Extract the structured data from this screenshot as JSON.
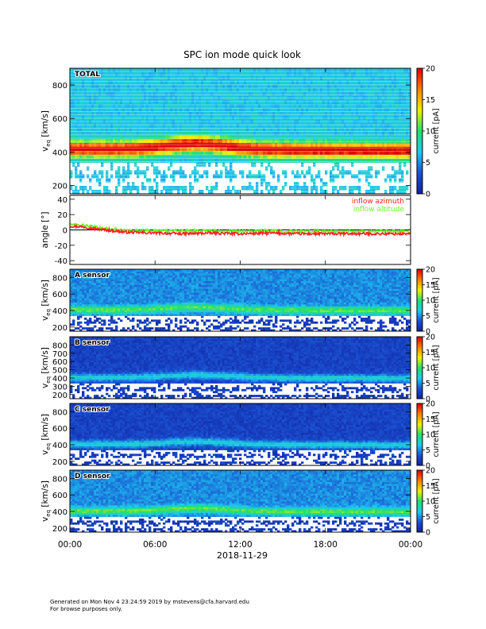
{
  "title": "SPC ion mode quick look",
  "xaxis": {
    "ticks": [
      {
        "label": "00:00",
        "hours": 0
      },
      {
        "label": "06:00",
        "hours": 6
      },
      {
        "label": "12:00",
        "hours": 12
      },
      {
        "label": "18:00",
        "hours": 18
      },
      {
        "label": "00:00",
        "hours": 24
      }
    ],
    "date_label": "2018-11-29"
  },
  "footer": {
    "line1": "Generated on Mon Nov  4 23:24:59 2019 by mstevens@cfa.harvard.edu",
    "line2": "For browse purposes only."
  },
  "colors": {
    "inflow_azimuth": "#ff2020",
    "inflow_altitude": "#66ff22",
    "colorscale": [
      "#1020a0",
      "#1a50d0",
      "#1ec8f0",
      "#20e070",
      "#f0f000",
      "#ff8000",
      "#e00000"
    ]
  },
  "chart_data": [
    {
      "id": "total",
      "type": "heatmap",
      "panel_label": "TOTAL",
      "ylabel_main": "v",
      "ylabel_sub": "eq",
      "ylabel_rest": "[km/s]",
      "xlim_hours": [
        0,
        24
      ],
      "ylim": [
        150,
        900
      ],
      "yticks": [
        200,
        400,
        600,
        800
      ],
      "colorbar": {
        "label": "current [pA]",
        "range": [
          0,
          20
        ],
        "ticks": [
          0,
          5,
          10,
          15,
          20
        ]
      },
      "colorscale": "rainbow",
      "peak_speed_kms": 420,
      "peak_current_pA": 14
    },
    {
      "id": "angles",
      "type": "line",
      "ylabel": "angle [°]",
      "xlim_hours": [
        0,
        24
      ],
      "ylim": [
        -45,
        45
      ],
      "yticks": [
        -40,
        -20,
        0,
        20,
        40
      ],
      "series": [
        {
          "name": "inflow azimuth",
          "x_hours": [
            0,
            1,
            2,
            3,
            4,
            6,
            8,
            10,
            12,
            14,
            16,
            18,
            20,
            22,
            24
          ],
          "values": [
            5,
            4,
            1,
            -1,
            -3,
            -4,
            -5,
            -4,
            -5,
            -4,
            -5,
            -5,
            -5,
            -5,
            -5
          ]
        },
        {
          "name": "inflow altitude",
          "x_hours": [
            0,
            1,
            2,
            3,
            4,
            6,
            8,
            10,
            12,
            14,
            16,
            18,
            20,
            22,
            24
          ],
          "values": [
            7,
            6,
            3,
            1,
            -1,
            -1,
            -1,
            -1,
            -2,
            -1,
            -2,
            -2,
            -2,
            -2,
            -2
          ]
        }
      ]
    },
    {
      "id": "a",
      "type": "heatmap",
      "panel_label": "A sensor",
      "ylabel_main": "v",
      "ylabel_sub": "eq",
      "ylabel_rest": "[km/s]",
      "xlim_hours": [
        0,
        24
      ],
      "ylim": [
        150,
        900
      ],
      "yticks": [
        200,
        400,
        600,
        800
      ],
      "colorbar": {
        "label": "current [pA]",
        "range": [
          0,
          20
        ],
        "ticks": [
          0,
          5,
          10,
          15,
          20
        ]
      },
      "colorscale": "rainbow",
      "peak_speed_kms": 410,
      "peak_current_pA": 6
    },
    {
      "id": "b",
      "type": "heatmap",
      "panel_label": "B sensor",
      "ylabel_main": "v",
      "ylabel_sub": "eq",
      "ylabel_rest": "[km/s]",
      "xlim_hours": [
        0,
        24
      ],
      "ylim": [
        150,
        900
      ],
      "yticks": [
        200,
        300,
        400,
        500,
        600,
        700,
        800
      ],
      "colorbar": {
        "label": "current [pA]",
        "range": [
          0,
          20
        ],
        "ticks": [
          0,
          5,
          10,
          15,
          20
        ]
      },
      "colorscale": "rainbow",
      "peak_speed_kms": 410,
      "peak_current_pA": 5
    },
    {
      "id": "c",
      "type": "heatmap",
      "panel_label": "C sensor",
      "ylabel_main": "v",
      "ylabel_sub": "eq",
      "ylabel_rest": "[km/s]",
      "xlim_hours": [
        0,
        24
      ],
      "ylim": [
        150,
        900
      ],
      "yticks": [
        200,
        400,
        600,
        800
      ],
      "colorbar": {
        "label": "current [pA]",
        "range": [
          0,
          20
        ],
        "ticks": [
          0,
          5,
          10,
          15,
          20
        ]
      },
      "colorscale": "rainbow",
      "peak_speed_kms": 410,
      "peak_current_pA": 5
    },
    {
      "id": "d",
      "type": "heatmap",
      "panel_label": "D sensor",
      "ylabel_main": "v",
      "ylabel_sub": "eq",
      "ylabel_rest": "[km/s]",
      "xlim_hours": [
        0,
        24
      ],
      "ylim": [
        150,
        900
      ],
      "yticks": [
        200,
        400,
        600,
        800
      ],
      "colorbar": {
        "label": "current [pA]",
        "range": [
          0,
          20
        ],
        "ticks": [
          0,
          5,
          10,
          15,
          20
        ]
      },
      "colorscale": "rainbow",
      "peak_speed_kms": 410,
      "peak_current_pA": 6
    }
  ]
}
